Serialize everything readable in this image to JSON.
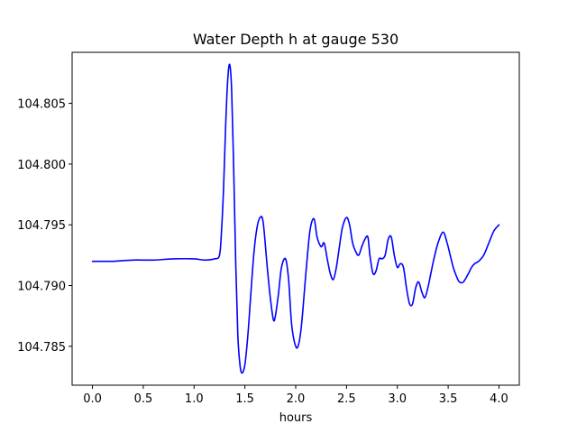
{
  "chart_data": {
    "type": "line",
    "title": "Water Depth h at gauge 530",
    "xlabel": "hours",
    "ylabel": "",
    "xlim": [
      -0.2,
      4.2
    ],
    "ylim": [
      104.7818,
      104.8092
    ],
    "x_ticks": [
      0.0,
      0.5,
      1.0,
      1.5,
      2.0,
      2.5,
      3.0,
      3.5,
      4.0
    ],
    "x_tick_labels": [
      "0.0",
      "0.5",
      "1.0",
      "1.5",
      "2.0",
      "2.5",
      "3.0",
      "3.5",
      "4.0"
    ],
    "y_ticks": [
      104.785,
      104.79,
      104.795,
      104.8,
      104.805
    ],
    "y_tick_labels": [
      "104.785",
      "104.790",
      "104.795",
      "104.800",
      "104.805"
    ],
    "grid": false,
    "series": [
      {
        "color": "#0000ff",
        "x": [
          0.0,
          0.2,
          0.4,
          0.6,
          0.8,
          1.0,
          1.1,
          1.2,
          1.25,
          1.27,
          1.29,
          1.31,
          1.33,
          1.35,
          1.37,
          1.39,
          1.41,
          1.43,
          1.45,
          1.47,
          1.5,
          1.53,
          1.56,
          1.59,
          1.62,
          1.65,
          1.68,
          1.72,
          1.75,
          1.78,
          1.8,
          1.83,
          1.86,
          1.9,
          1.93,
          1.96,
          2.0,
          2.03,
          2.06,
          2.1,
          2.14,
          2.18,
          2.21,
          2.25,
          2.28,
          2.31,
          2.34,
          2.37,
          2.4,
          2.43,
          2.46,
          2.5,
          2.53,
          2.56,
          2.59,
          2.62,
          2.65,
          2.68,
          2.71,
          2.73,
          2.76,
          2.79,
          2.82,
          2.85,
          2.88,
          2.91,
          2.94,
          2.97,
          3.0,
          3.03,
          3.06,
          3.09,
          3.12,
          3.15,
          3.18,
          3.21,
          3.24,
          3.27,
          3.3,
          3.33,
          3.36,
          3.4,
          3.45,
          3.49,
          3.52,
          3.55,
          3.58,
          3.61,
          3.65,
          3.7,
          3.73,
          3.76,
          3.8,
          3.85,
          3.9,
          3.95,
          4.0
        ],
        "y": [
          104.792,
          104.792,
          104.7921,
          104.7921,
          104.7922,
          104.7922,
          104.7921,
          104.7922,
          104.7925,
          104.7945,
          104.798,
          104.803,
          104.8068,
          104.8082,
          104.806,
          104.7995,
          104.7918,
          104.786,
          104.7836,
          104.7828,
          104.7835,
          104.786,
          104.7895,
          104.7928,
          104.7948,
          104.7956,
          104.7952,
          104.7915,
          104.789,
          104.7872,
          104.7875,
          104.7893,
          104.7915,
          104.7922,
          104.7905,
          104.7868,
          104.785,
          104.7852,
          104.787,
          104.791,
          104.7945,
          104.7955,
          104.794,
          104.7932,
          104.7935,
          104.7922,
          104.791,
          104.7905,
          104.7915,
          104.7932,
          104.7948,
          104.7956,
          104.795,
          104.7935,
          104.7928,
          104.7925,
          104.7932,
          104.7938,
          104.794,
          104.7925,
          104.791,
          104.7912,
          104.7922,
          104.7922,
          104.7925,
          104.7938,
          104.794,
          104.7925,
          104.7915,
          104.7918,
          104.7915,
          104.7898,
          104.7885,
          104.7885,
          104.7898,
          104.7903,
          104.7895,
          104.789,
          104.7898,
          104.791,
          104.7922,
          104.7935,
          104.7944,
          104.7935,
          104.7925,
          104.7915,
          104.7908,
          104.7903,
          104.7903,
          104.791,
          104.7915,
          104.7918,
          104.792,
          104.7925,
          104.7935,
          104.7945,
          104.795
        ]
      }
    ]
  }
}
